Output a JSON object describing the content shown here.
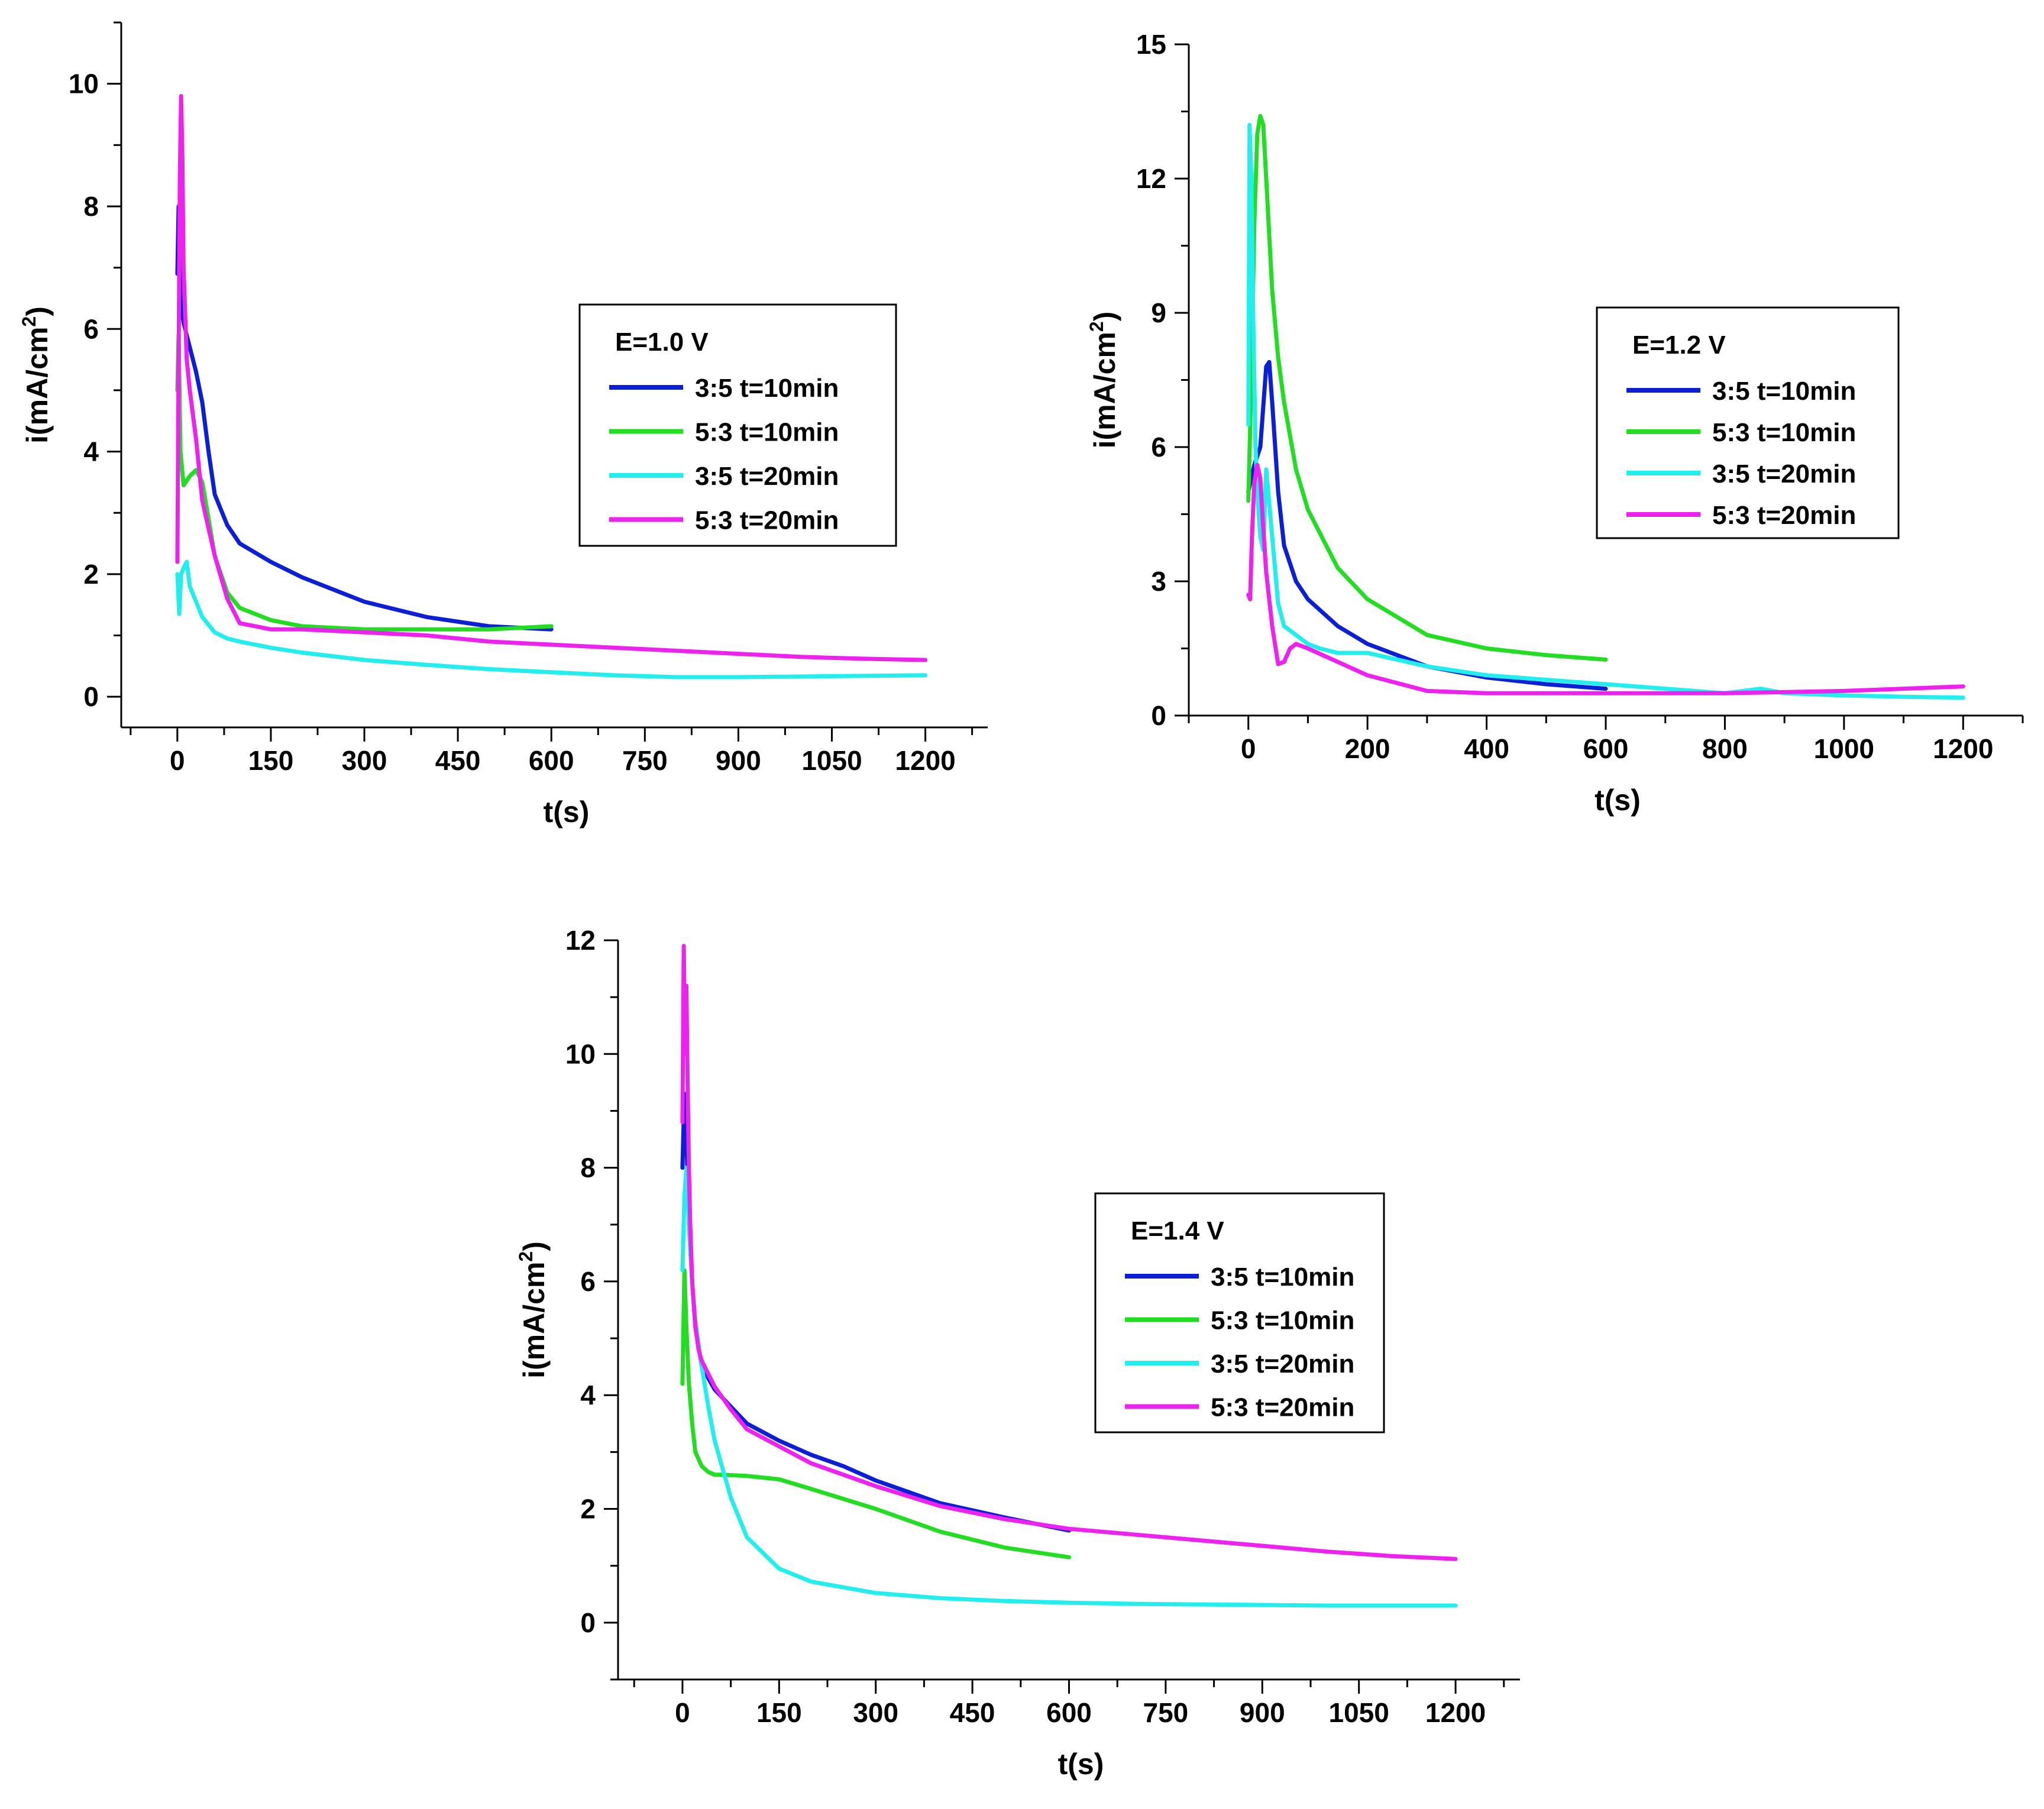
{
  "chart_data": [
    {
      "type": "line",
      "title": "",
      "xlabel": "t(s)",
      "ylabel_main": "i(mA/cm",
      "ylabel_sup": "2",
      "ylabel_end": ")",
      "xlim": [
        -90,
        1300
      ],
      "ylim": [
        -0.5,
        11
      ],
      "xticks": [
        0,
        150,
        300,
        450,
        600,
        750,
        900,
        1050,
        1200
      ],
      "xtick_labels": [
        "0",
        "150",
        "300",
        "450",
        "600",
        "750",
        "900",
        "1050",
        "1200"
      ],
      "yticks": [
        0,
        2,
        4,
        6,
        8,
        10
      ],
      "ytick_labels": [
        "0",
        "2",
        "4",
        "6",
        "8",
        "10"
      ],
      "grid": false,
      "legend_title": "E=1.0 V",
      "legend_position": "right",
      "series": [
        {
          "name": "3:5 t=10min",
          "color": "#0a1fd6",
          "x": [
            0,
            2,
            5,
            10,
            20,
            30,
            40,
            50,
            60,
            80,
            100,
            150,
            200,
            300,
            400,
            500,
            600
          ],
          "y": [
            6.9,
            8.0,
            6.5,
            6.1,
            5.7,
            5.3,
            4.8,
            4.0,
            3.3,
            2.8,
            2.5,
            2.2,
            1.95,
            1.55,
            1.3,
            1.15,
            1.1
          ]
        },
        {
          "name": "5:3 t=10min",
          "color": "#22dd22",
          "x": [
            0,
            2,
            5,
            10,
            20,
            30,
            40,
            50,
            60,
            80,
            100,
            150,
            200,
            300,
            400,
            500,
            600
          ],
          "y": [
            5.0,
            5.9,
            4.0,
            3.45,
            3.6,
            3.7,
            3.5,
            2.9,
            2.3,
            1.7,
            1.45,
            1.25,
            1.15,
            1.1,
            1.1,
            1.1,
            1.15
          ]
        },
        {
          "name": "3:5 t=20min",
          "color": "#22eeee",
          "x": [
            0,
            3,
            6,
            10,
            15,
            20,
            30,
            40,
            60,
            80,
            100,
            150,
            200,
            300,
            400,
            500,
            600,
            700,
            800,
            900,
            1000,
            1100,
            1200
          ],
          "y": [
            2.0,
            1.35,
            2.0,
            2.1,
            2.2,
            1.8,
            1.55,
            1.3,
            1.05,
            0.95,
            0.9,
            0.8,
            0.72,
            0.6,
            0.52,
            0.45,
            0.4,
            0.35,
            0.32,
            0.32,
            0.33,
            0.34,
            0.35
          ]
        },
        {
          "name": "5:3 t=20min",
          "color": "#ee22ee",
          "x": [
            0,
            2,
            4,
            6,
            8,
            10,
            15,
            20,
            30,
            40,
            60,
            80,
            100,
            150,
            200,
            300,
            400,
            500,
            600,
            700,
            800,
            900,
            1000,
            1100,
            1200
          ],
          "y": [
            2.2,
            5.5,
            8.5,
            9.8,
            8.8,
            7.0,
            5.5,
            5.0,
            4.2,
            3.2,
            2.3,
            1.6,
            1.2,
            1.1,
            1.1,
            1.05,
            1.0,
            0.9,
            0.85,
            0.8,
            0.75,
            0.7,
            0.65,
            0.62,
            0.6
          ]
        }
      ]
    },
    {
      "type": "line",
      "title": "",
      "xlabel": "t(s)",
      "ylabel_main": "i(mA/cm",
      "ylabel_sup": "2",
      "ylabel_end": ")",
      "xlim": [
        -100,
        1300
      ],
      "ylim": [
        0,
        15
      ],
      "xticks": [
        0,
        200,
        400,
        600,
        800,
        1000,
        1200
      ],
      "xtick_labels": [
        "0",
        "200",
        "400",
        "600",
        "800",
        "1000",
        "1200"
      ],
      "yticks": [
        0,
        3,
        6,
        9,
        12,
        15
      ],
      "ytick_labels": [
        "0",
        "3",
        "6",
        "9",
        "12",
        "15"
      ],
      "grid": false,
      "legend_title": "E=1.2 V",
      "legend_position": "right",
      "series": [
        {
          "name": "3:5 t=10min",
          "color": "#0a1fd6",
          "x": [
            0,
            5,
            10,
            20,
            30,
            35,
            40,
            50,
            60,
            80,
            100,
            150,
            200,
            300,
            400,
            500,
            600
          ],
          "y": [
            5.0,
            5.3,
            5.6,
            6.0,
            7.8,
            7.9,
            7.0,
            5.0,
            3.8,
            3.0,
            2.6,
            2.0,
            1.6,
            1.1,
            0.85,
            0.7,
            0.6
          ]
        },
        {
          "name": "5:3 t=10min",
          "color": "#22dd22",
          "x": [
            0,
            5,
            10,
            15,
            20,
            25,
            30,
            40,
            50,
            60,
            80,
            100,
            150,
            200,
            300,
            400,
            500,
            600
          ],
          "y": [
            4.8,
            7.5,
            11.0,
            13.0,
            13.4,
            13.2,
            12.0,
            9.5,
            8.0,
            7.0,
            5.5,
            4.6,
            3.3,
            2.6,
            1.8,
            1.5,
            1.35,
            1.25
          ]
        },
        {
          "name": "3:5 t=20min",
          "color": "#22eeee",
          "x": [
            0,
            2,
            5,
            8,
            12,
            16,
            20,
            25,
            30,
            40,
            50,
            60,
            80,
            100,
            120,
            150,
            200,
            300,
            400,
            500,
            600,
            700,
            800,
            860,
            900,
            1000,
            1100,
            1200
          ],
          "y": [
            6.5,
            13.2,
            12.0,
            9.0,
            6.0,
            4.8,
            4.0,
            3.7,
            5.5,
            4.0,
            2.5,
            2.0,
            1.8,
            1.6,
            1.5,
            1.4,
            1.4,
            1.1,
            0.9,
            0.8,
            0.7,
            0.6,
            0.5,
            0.6,
            0.5,
            0.45,
            0.42,
            0.4
          ]
        },
        {
          "name": "5:3 t=20min",
          "color": "#ee22ee",
          "x": [
            0,
            3,
            6,
            10,
            15,
            20,
            25,
            30,
            40,
            50,
            60,
            70,
            80,
            100,
            150,
            200,
            300,
            400,
            600,
            800,
            1000,
            1200
          ],
          "y": [
            2.7,
            2.6,
            4.0,
            5.2,
            5.6,
            5.3,
            4.2,
            3.2,
            2.0,
            1.15,
            1.2,
            1.5,
            1.6,
            1.5,
            1.2,
            0.9,
            0.55,
            0.5,
            0.5,
            0.5,
            0.55,
            0.65
          ]
        }
      ]
    },
    {
      "type": "line",
      "title": "",
      "xlabel": "t(s)",
      "ylabel_main": "i(mA/cm",
      "ylabel_sup": "2",
      "ylabel_end": ")",
      "xlim": [
        -100,
        1300
      ],
      "ylim": [
        -1,
        12
      ],
      "xticks": [
        0,
        150,
        300,
        450,
        600,
        750,
        900,
        1050,
        1200
      ],
      "xtick_labels": [
        "0",
        "150",
        "300",
        "450",
        "600",
        "750",
        "900",
        "1050",
        "1200"
      ],
      "yticks": [
        0,
        2,
        4,
        6,
        8,
        10,
        12
      ],
      "ytick_labels": [
        "0",
        "2",
        "4",
        "6",
        "8",
        "10",
        "12"
      ],
      "grid": false,
      "legend_title": "E=1.4 V",
      "legend_position": "right",
      "series": [
        {
          "name": "3:5 t=10min",
          "color": "#0a1fd6",
          "x": [
            0,
            3,
            6,
            10,
            15,
            20,
            30,
            50,
            75,
            100,
            150,
            200,
            250,
            300,
            400,
            500,
            600
          ],
          "y": [
            8.0,
            9.3,
            8.6,
            7.0,
            6.0,
            5.2,
            4.5,
            4.1,
            3.8,
            3.5,
            3.2,
            2.95,
            2.75,
            2.5,
            2.1,
            1.85,
            1.62
          ]
        },
        {
          "name": "5:3 t=10min",
          "color": "#22dd22",
          "x": [
            0,
            3,
            6,
            10,
            15,
            20,
            30,
            40,
            50,
            60,
            100,
            150,
            200,
            300,
            400,
            500,
            600
          ],
          "y": [
            4.2,
            6.2,
            5.2,
            4.2,
            3.5,
            3.0,
            2.75,
            2.65,
            2.6,
            2.6,
            2.58,
            2.52,
            2.35,
            2.0,
            1.6,
            1.32,
            1.15
          ]
        },
        {
          "name": "3:5 t=20min",
          "color": "#22eeee",
          "x": [
            0,
            3,
            6,
            10,
            15,
            20,
            30,
            40,
            50,
            75,
            100,
            150,
            200,
            300,
            400,
            500,
            600,
            700,
            800,
            900,
            1000,
            1100,
            1200
          ],
          "y": [
            6.2,
            7.5,
            8.0,
            7.0,
            6.0,
            5.3,
            4.5,
            3.8,
            3.2,
            2.2,
            1.5,
            0.95,
            0.72,
            0.52,
            0.43,
            0.38,
            0.35,
            0.33,
            0.32,
            0.31,
            0.3,
            0.3,
            0.3
          ]
        },
        {
          "name": "5:3 t=20min",
          "color": "#ee22ee",
          "x": [
            0,
            2,
            4,
            6,
            8,
            10,
            12,
            15,
            20,
            25,
            30,
            50,
            75,
            100,
            150,
            200,
            250,
            300,
            400,
            500,
            600,
            700,
            800,
            900,
            1000,
            1100,
            1200
          ],
          "y": [
            8.8,
            11.9,
            10.0,
            11.2,
            9.5,
            8.0,
            7.0,
            6.0,
            5.2,
            4.8,
            4.6,
            4.15,
            3.75,
            3.4,
            3.1,
            2.8,
            2.6,
            2.4,
            2.05,
            1.82,
            1.65,
            1.55,
            1.45,
            1.35,
            1.25,
            1.17,
            1.12
          ]
        }
      ]
    }
  ]
}
